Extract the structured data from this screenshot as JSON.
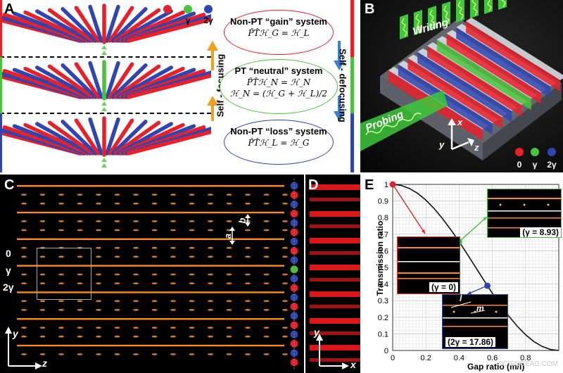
{
  "panels": {
    "A": {
      "label": "A",
      "legend": [
        "0",
        "γ",
        "2γ"
      ],
      "systems": [
        {
          "title": "Non-PT “gain” system",
          "eq1": "P̂T̂ℋ_G = ℋ_L",
          "eq2": ""
        },
        {
          "title": "PT “neutral” system",
          "eq1": "P̂T̂ℋ_N = ℋ_N",
          "eq2": "ℋ_N = (ℋ_G + ℋ_L)/2"
        },
        {
          "title": "Non-PT “loss” system",
          "eq1": "P̂T̂ℋ_L = ℋ_G",
          "eq2": ""
        }
      ],
      "left_arrow_label": "Self - focusing",
      "right_arrow_label": "Self - defocusing"
    },
    "B": {
      "label": "B",
      "writing": "Writing",
      "probing": "Probing",
      "axes": {
        "x": "x",
        "y": "y",
        "z": "z"
      },
      "legend": [
        "0",
        "γ",
        "2γ"
      ]
    },
    "C": {
      "label": "C",
      "row_labels": [
        "0",
        "γ",
        "2γ"
      ],
      "dims": {
        "a": "a",
        "b": "b"
      },
      "axes": {
        "y": "y",
        "z": "z"
      }
    },
    "D": {
      "label": "D",
      "axes": {
        "y": "y",
        "x": "x"
      }
    },
    "E": {
      "label": "E",
      "ylabel": "Transmission ratio",
      "xlabel": "Gap ratio (m/l)",
      "inset_labels": [
        "(γ = 8.93)",
        "(γ = 0)",
        "(2γ = 17.86)"
      ],
      "inset_dims": {
        "l": "l",
        "m": "m"
      },
      "watermark": "SCIENCEAG.COM"
    }
  },
  "colors": {
    "zero": "#e8202a",
    "gamma": "#4cc23c",
    "two_gamma": "#2f45b0",
    "waveguide": "#ff8a1a"
  },
  "chart_data": {
    "type": "line",
    "xlabel": "Gap ratio (m/l)",
    "ylabel": "Transmission ratio",
    "xlim": [
      0,
      1
    ],
    "ylim": [
      0,
      1
    ],
    "xticks": [
      "0",
      "0.2",
      "0.4",
      "0.6",
      "0.8"
    ],
    "yticks": [
      "0",
      "0.1",
      "0.2",
      "0.3",
      "0.4",
      "0.5",
      "0.6",
      "0.7",
      "0.8",
      "0.9",
      "1"
    ],
    "grid": true,
    "x": [
      0,
      0.05,
      0.1,
      0.15,
      0.2,
      0.25,
      0.3,
      0.35,
      0.4,
      0.45,
      0.5,
      0.55,
      0.6,
      0.65,
      0.7,
      0.75,
      0.8,
      0.85,
      0.9,
      0.95,
      1.0
    ],
    "y": [
      1.0,
      0.994,
      0.976,
      0.946,
      0.905,
      0.854,
      0.794,
      0.727,
      0.655,
      0.579,
      0.5,
      0.421,
      0.345,
      0.273,
      0.206,
      0.146,
      0.095,
      0.054,
      0.024,
      0.006,
      0.0
    ],
    "points": [
      {
        "x": 0,
        "y": 1.0,
        "color": "#e8202a"
      },
      {
        "x": 0.4,
        "y": 0.655,
        "color": "#4cc23c"
      },
      {
        "x": 0.57,
        "y": 0.39,
        "color": "#2f45b0"
      }
    ]
  }
}
